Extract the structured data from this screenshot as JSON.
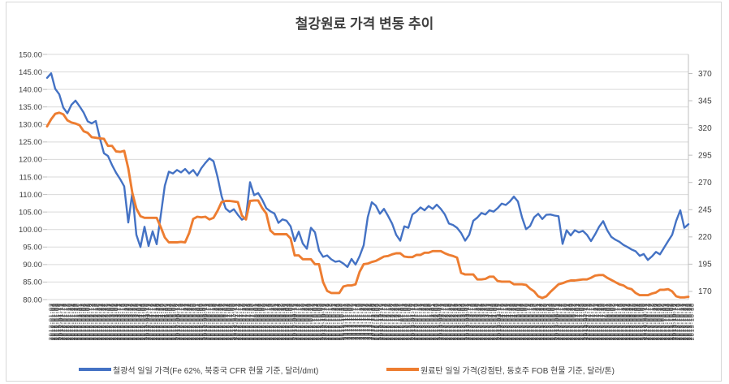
{
  "title": "철강원료 가격 변동 추이",
  "colors": {
    "background": "#FFFFFF",
    "frame_border": "#D7D7D7",
    "gridline": "#D9D9D9",
    "axis_line": "#BFBFBF",
    "axis_text": "#404040",
    "title_text": "#404040",
    "series_iron_ore": "#4472C4",
    "series_coking_coal": "#ED7D31"
  },
  "chart_data": {
    "type": "line",
    "title": "철강원료 가격 변동 추이",
    "grid": true,
    "legend_position": "bottom",
    "left_axis": {
      "min": 80,
      "max": 150,
      "step": 5,
      "decimals": 2
    },
    "right_axis": {
      "min": 162.5,
      "max": 387.5,
      "tick_min": 170,
      "tick_max": 370,
      "step": 25,
      "decimals": 0
    },
    "x_axis": {
      "kind": "daily-dates",
      "start_date": "2012-01-02",
      "business_days": 478,
      "label_format": "YYYY-MM-DD",
      "note": "daily date labels rotated 90 degrees, heavily overlapping (illegible in source image); values approximate"
    },
    "series": [
      {
        "name": "철광석 일일 가격(Fe 62%, 북중국 CFR 현물 기준, 달러/dmt)",
        "color": "#4472C4",
        "axis": "left",
        "stroke_width": 2.4,
        "values": [
          143.3,
          144.6,
          140.2,
          138.6,
          134.8,
          133.2,
          135.6,
          136.8,
          135.2,
          133.4,
          130.9,
          130.3,
          131.0,
          126.1,
          121.8,
          121.0,
          118.4,
          116.2,
          114.4,
          112.3,
          102.0,
          110.5,
          98.5,
          95.0,
          100.8,
          95.3,
          99.5,
          95.8,
          104.0,
          112.5,
          116.5,
          116.0,
          117.0,
          116.3,
          117.3,
          116.0,
          117.0,
          115.4,
          117.5,
          119.0,
          120.3,
          119.5,
          115.0,
          109.5,
          106.0,
          105.0,
          105.8,
          104.2,
          102.8,
          103.5,
          113.5,
          109.8,
          110.4,
          108.5,
          106.1,
          105.2,
          104.6,
          101.9,
          102.9,
          102.5,
          100.9,
          96.7,
          99.4,
          96.0,
          94.5,
          100.5,
          99.2,
          94.0,
          92.2,
          92.6,
          91.5,
          90.8,
          91.0,
          90.3,
          89.3,
          91.6,
          90.0,
          92.4,
          95.5,
          103.5,
          107.8,
          106.8,
          104.5,
          105.9,
          103.9,
          101.7,
          98.5,
          96.8,
          100.9,
          100.5,
          104.3,
          105.1,
          106.3,
          105.5,
          106.7,
          105.9,
          107.1,
          105.9,
          104.3,
          101.7,
          101.3,
          100.5,
          99.0,
          96.8,
          98.5,
          102.5,
          103.4,
          104.7,
          104.3,
          105.5,
          105.1,
          106.1,
          107.4,
          107.0,
          108.0,
          109.4,
          108.0,
          103.5,
          100.1,
          101.0,
          103.5,
          104.5,
          103.0,
          104.2,
          104.3,
          104.0,
          103.8,
          95.9,
          99.8,
          98.3,
          99.8,
          99.2,
          99.6,
          98.5,
          96.7,
          98.6,
          100.8,
          102.4,
          99.8,
          97.9,
          97.1,
          96.5,
          95.6,
          95.0,
          94.3,
          93.8,
          92.5,
          93.0,
          91.3,
          92.3,
          93.6,
          92.9,
          94.8,
          96.7,
          98.5,
          102.5,
          105.5,
          100.5,
          101.5
        ]
      },
      {
        "name": "원료탄 일일 가격(강점탄, 동호주 FOB 현물 기준, 달러/톤)",
        "color": "#ED7D31",
        "axis": "right",
        "stroke_width": 2.9,
        "values": [
          321.5,
          328,
          333,
          334,
          332.5,
          327,
          325,
          324,
          322.5,
          317,
          315.5,
          311.5,
          311,
          310.5,
          310,
          303.5,
          303.5,
          298.5,
          298,
          299,
          283,
          260.5,
          246,
          239,
          237.5,
          237.5,
          237.5,
          237.5,
          229,
          219.5,
          215,
          215,
          215,
          215.5,
          215,
          223.5,
          236.5,
          238.5,
          238,
          238.5,
          236,
          237.5,
          244,
          252,
          253,
          253,
          252.5,
          252,
          239.5,
          236,
          253,
          253.5,
          253.5,
          246.5,
          241.5,
          226,
          222.5,
          222.5,
          222.5,
          222.5,
          218.5,
          203,
          203,
          199.5,
          199.5,
          199.5,
          195,
          195,
          178.5,
          170.5,
          168.5,
          168.5,
          168.5,
          174.5,
          175.5,
          175.5,
          176.5,
          188,
          195,
          195.5,
          197,
          198,
          200,
          202,
          202.5,
          204,
          205,
          205,
          202,
          201.5,
          201.5,
          203.5,
          203.5,
          205.5,
          205.5,
          207,
          207,
          207,
          205,
          203.5,
          202.5,
          201,
          187,
          185.5,
          185.5,
          185.5,
          181,
          181,
          181.5,
          183.5,
          183.5,
          179.5,
          179,
          179,
          179,
          176.5,
          176.5,
          176.5,
          176,
          172.5,
          170,
          165.5,
          164,
          165.5,
          169.5,
          173,
          176.5,
          177.5,
          179,
          180,
          180,
          180.5,
          181,
          181,
          182.5,
          184.5,
          185,
          185,
          182.5,
          180.5,
          178.5,
          176.5,
          175.5,
          173,
          172,
          168.5,
          166.5,
          166.5,
          166.5,
          168,
          169,
          171.5,
          171.5,
          172,
          170,
          165.5,
          164.5,
          164.5,
          165
        ]
      }
    ]
  }
}
